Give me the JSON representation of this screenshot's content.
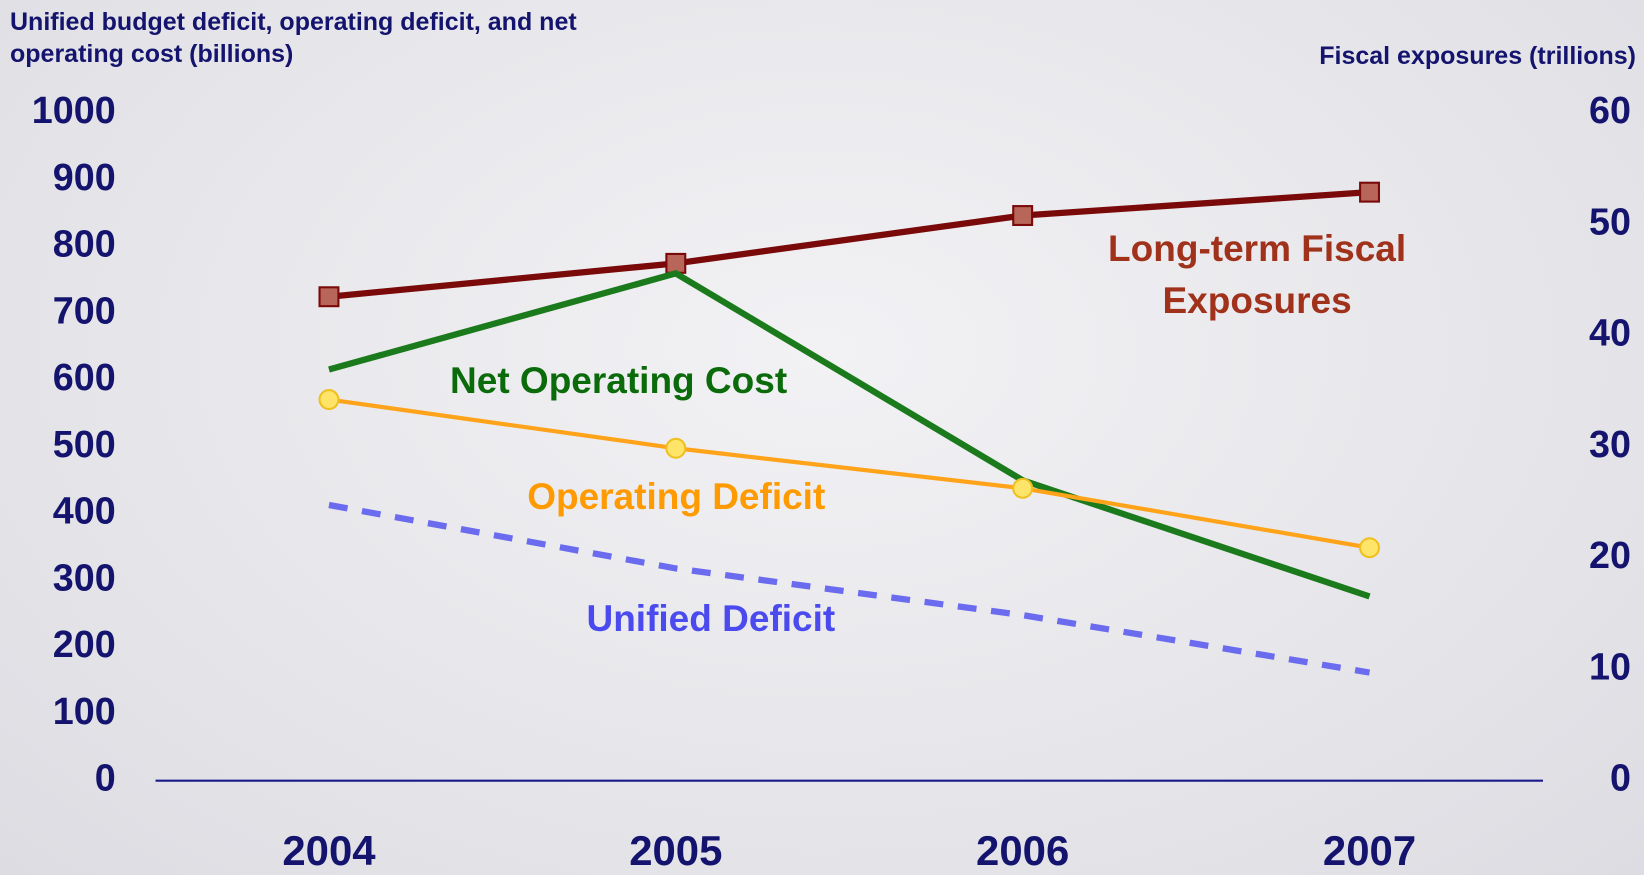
{
  "chart_data": {
    "type": "line",
    "ylabel": "Unified budget deficit, operating deficit, and net operating cost (billions)",
    "y2label": "Fiscal exposures (trillions)",
    "categories": [
      "2004",
      "2005",
      "2006",
      "2007"
    ],
    "ylim": [
      0,
      1000
    ],
    "yticks": [
      0,
      100,
      200,
      300,
      400,
      500,
      600,
      700,
      800,
      900,
      1000
    ],
    "y2lim": [
      0,
      60
    ],
    "y2ticks": [
      0,
      10,
      20,
      30,
      40,
      50,
      60
    ],
    "series": [
      {
        "name": "Long-term Fiscal Exposures",
        "color": "#7a0a0a",
        "marker": "square",
        "axis": "y2",
        "values": [
          43.5,
          46.5,
          50.8,
          52.9
        ]
      },
      {
        "name": "Net Operating Cost",
        "color": "#1b7a1b",
        "values": [
          616,
          760,
          450,
          276
        ]
      },
      {
        "name": "Operating Deficit",
        "color": "#ffa31a",
        "marker": "circle",
        "values": [
          571,
          498,
          438,
          349
        ]
      },
      {
        "name": "Unified Deficit",
        "color": "#6b6bef",
        "dashed": true,
        "values": [
          413,
          318,
          248,
          162
        ]
      }
    ]
  }
}
